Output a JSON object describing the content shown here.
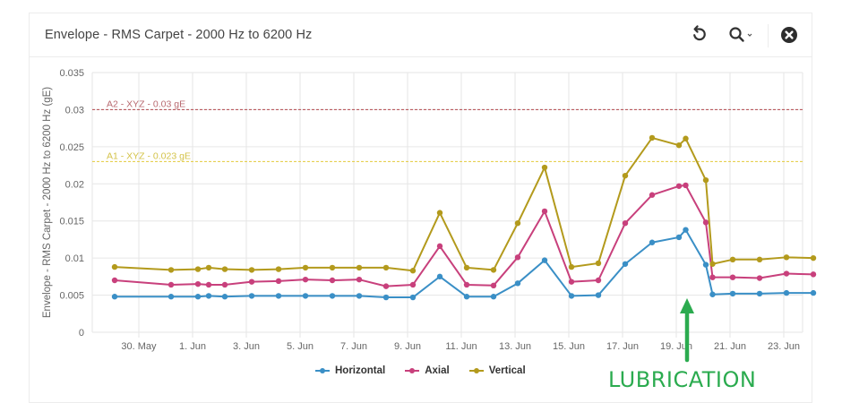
{
  "header": {
    "title": "Envelope - RMS Carpet - 2000 Hz to 6200 Hz",
    "tools": [
      {
        "name": "reset-zoom",
        "icon": "undo-icon"
      },
      {
        "name": "zoom",
        "icon": "magnifier-icon",
        "dropdown": "chevron-down-icon"
      },
      {
        "name": "close",
        "icon": "close-circle-icon"
      }
    ]
  },
  "annotation": {
    "label": "LUBRICATION",
    "color": "#2bab4f",
    "arrow_date": "19.6 Jun"
  },
  "legend": {
    "items": [
      {
        "label": "Horizontal",
        "color": "#3a8fc6"
      },
      {
        "label": "Axial",
        "color": "#c8407c"
      },
      {
        "label": "Vertical",
        "color": "#b39a1c"
      }
    ]
  },
  "chart_data": {
    "type": "line",
    "title": "Envelope - RMS Carpet - 2000 Hz to 6200 Hz",
    "xlabel": "",
    "ylabel": "Envelope - RMS Carpet - 2000 Hz to 6200 Hz (gE)",
    "ylim": [
      0,
      0.035
    ],
    "y_ticks": [
      "0",
      "0.005",
      "0.01",
      "0.015",
      "0.02",
      "0.025",
      "0.03",
      "0.035"
    ],
    "x_ticks": [
      "30. May",
      "1. Jun",
      "3. Jun",
      "5. Jun",
      "7. Jun",
      "9. Jun",
      "11. Jun",
      "13. Jun",
      "15. Jun",
      "17. Jun",
      "19. Jun",
      "21. Jun",
      "23. Jun"
    ],
    "grid": true,
    "legend_position": "bottom",
    "x_day": [
      -1.9,
      0.2,
      1.2,
      1.6,
      2.2,
      3.2,
      4.2,
      5.2,
      6.2,
      7.2,
      8.2,
      9.2,
      10.2,
      11.2,
      12.2,
      13.1,
      14.1,
      15.1,
      16.1,
      17.1,
      18.1,
      19.1,
      19.35,
      20.1,
      20.35,
      21.1,
      22.1,
      23.1,
      24.1
    ],
    "x_day_note": "days relative to 31 May; positions estimated from pixel spacing",
    "series": [
      {
        "name": "Horizontal",
        "color": "#3a8fc6",
        "values": [
          0.0048,
          0.0048,
          0.0048,
          0.0049,
          0.0048,
          0.0049,
          0.0049,
          0.0049,
          0.0049,
          0.0049,
          0.0047,
          0.0047,
          0.0075,
          0.0048,
          0.0048,
          0.0066,
          0.0097,
          0.0049,
          0.005,
          0.0092,
          0.0121,
          0.0128,
          0.0138,
          0.0091,
          0.0051,
          0.0052,
          0.0052,
          0.0053,
          0.0053
        ]
      },
      {
        "name": "Axial",
        "color": "#c8407c",
        "values": [
          0.007,
          0.0064,
          0.0065,
          0.0064,
          0.0064,
          0.0068,
          0.0069,
          0.0071,
          0.007,
          0.0071,
          0.0062,
          0.0064,
          0.0116,
          0.0064,
          0.0063,
          0.0101,
          0.0163,
          0.0068,
          0.007,
          0.0147,
          0.0185,
          0.0197,
          0.0198,
          0.0148,
          0.0074,
          0.0074,
          0.0073,
          0.0079,
          0.0078
        ]
      },
      {
        "name": "Vertical",
        "color": "#b39a1c",
        "values": [
          0.0088,
          0.0084,
          0.0085,
          0.0087,
          0.0085,
          0.0084,
          0.0085,
          0.0087,
          0.0087,
          0.0087,
          0.0087,
          0.0083,
          0.0161,
          0.0087,
          0.0084,
          0.0147,
          0.0222,
          0.0088,
          0.0093,
          0.0211,
          0.0262,
          0.0252,
          0.0261,
          0.0205,
          0.0092,
          0.0098,
          0.0098,
          0.0101,
          0.01
        ]
      }
    ],
    "plot_lines": [
      {
        "label": "A2 - XYZ - 0.03 gE",
        "value": 0.03,
        "color": "#b5474d",
        "label_color": "#b86a70",
        "style": "dashed"
      },
      {
        "label": "A1 - XYZ - 0.023 gE",
        "value": 0.023,
        "color": "#e3c93a",
        "label_color": "#d4c34a",
        "style": "dashed"
      }
    ]
  }
}
